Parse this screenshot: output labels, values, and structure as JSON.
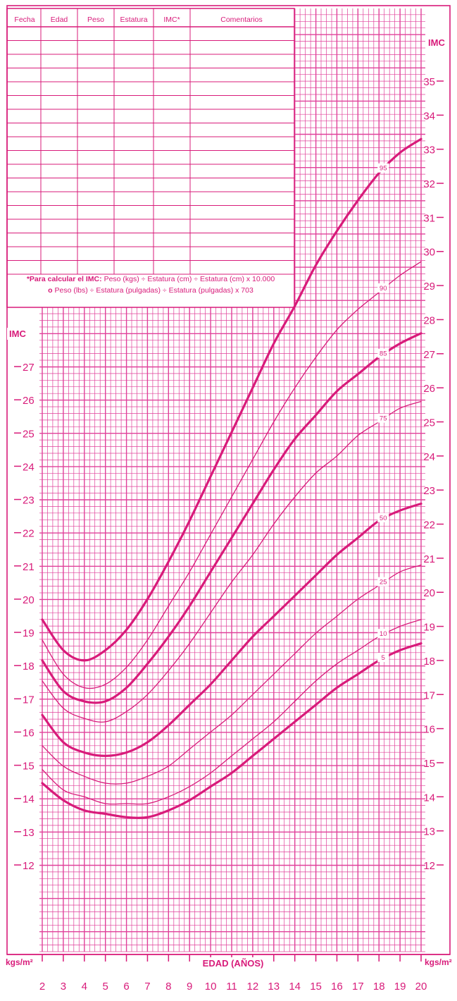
{
  "table": {
    "headers": [
      "Fecha",
      "Edad",
      "Peso",
      "Estatura",
      "IMC*",
      "Comentarios"
    ]
  },
  "note": {
    "line1_bold": "*Para calcular el IMC:",
    "line1_rest": "Peso (kgs) ÷ Estatura (cm) ÷ Estatura (cm) x 10.000",
    "line2_bold": "o",
    "line2_rest": "Peso (lbs) ÷ Estatura (pulgadas) ÷ Estatura (pulgadas) x 703"
  },
  "labels": {
    "imc_left": "IMC",
    "imc_right": "IMC",
    "unit_left": "kgs/m²",
    "unit_right": "kgs/m²"
  },
  "colors": {
    "ink": "#d81b7a",
    "grid": "#e0409a",
    "background": "#ffffff"
  },
  "chart_data": {
    "type": "line",
    "xlabel": "EDAD (AÑOS)",
    "ylabel": "IMC",
    "xlim": [
      2,
      20
    ],
    "ylim_left": [
      12,
      27
    ],
    "ylim_right": [
      12,
      35
    ],
    "xticks": [
      2,
      3,
      4,
      5,
      6,
      7,
      8,
      9,
      10,
      11,
      12,
      13,
      14,
      15,
      16,
      17,
      18,
      19,
      20
    ],
    "yticks_left": [
      12,
      13,
      14,
      15,
      16,
      17,
      18,
      19,
      20,
      21,
      22,
      23,
      24,
      25,
      26,
      27
    ],
    "yticks_right": [
      12,
      13,
      14,
      15,
      16,
      17,
      18,
      19,
      20,
      21,
      22,
      23,
      24,
      25,
      26,
      27,
      28,
      29,
      30,
      31,
      32,
      33,
      34,
      35
    ],
    "grid": true,
    "series": [
      {
        "name": "95",
        "bold": true,
        "label_x": 18.2,
        "x": [
          2,
          3,
          4,
          5,
          6,
          7,
          8,
          9,
          10,
          11,
          12,
          13,
          14,
          15,
          16,
          17,
          18,
          19,
          20
        ],
        "values": [
          19.2,
          18.3,
          18.0,
          18.3,
          18.9,
          19.8,
          20.9,
          22.1,
          23.4,
          24.7,
          26.0,
          27.3,
          28.4,
          29.6,
          30.6,
          31.5,
          32.3,
          32.9,
          33.3
        ]
      },
      {
        "name": "90",
        "bold": false,
        "label_x": 18.2,
        "x": [
          2,
          3,
          4,
          5,
          6,
          7,
          8,
          9,
          10,
          11,
          12,
          13,
          14,
          15,
          16,
          17,
          18,
          19,
          20
        ],
        "values": [
          18.6,
          17.6,
          17.2,
          17.3,
          17.8,
          18.6,
          19.6,
          20.6,
          21.7,
          22.8,
          23.9,
          25.0,
          26.0,
          26.9,
          27.7,
          28.3,
          28.8,
          29.3,
          29.7
        ]
      },
      {
        "name": "85",
        "bold": true,
        "label_x": 18.2,
        "x": [
          2,
          3,
          4,
          5,
          6,
          7,
          8,
          9,
          10,
          11,
          12,
          13,
          14,
          15,
          16,
          17,
          18,
          19,
          20
        ],
        "values": [
          18.0,
          17.1,
          16.8,
          16.8,
          17.2,
          17.9,
          18.7,
          19.6,
          20.6,
          21.6,
          22.6,
          23.6,
          24.5,
          25.2,
          25.9,
          26.4,
          26.9,
          27.3,
          27.6
        ]
      },
      {
        "name": "75",
        "bold": false,
        "label_x": 18.2,
        "x": [
          2,
          3,
          4,
          5,
          6,
          7,
          8,
          9,
          10,
          11,
          12,
          13,
          14,
          15,
          16,
          17,
          18,
          19,
          20
        ],
        "values": [
          17.4,
          16.6,
          16.3,
          16.2,
          16.5,
          17.0,
          17.7,
          18.5,
          19.4,
          20.3,
          21.1,
          22.0,
          22.8,
          23.5,
          24.0,
          24.6,
          25.0,
          25.4,
          25.6
        ]
      },
      {
        "name": "50",
        "bold": true,
        "label_x": 18.2,
        "x": [
          2,
          3,
          4,
          5,
          6,
          7,
          8,
          9,
          10,
          11,
          12,
          13,
          14,
          15,
          16,
          17,
          18,
          19,
          20
        ],
        "values": [
          16.4,
          15.6,
          15.3,
          15.2,
          15.3,
          15.6,
          16.1,
          16.7,
          17.3,
          18.0,
          18.7,
          19.3,
          19.9,
          20.5,
          21.1,
          21.6,
          22.1,
          22.4,
          22.6
        ]
      },
      {
        "name": "25",
        "bold": false,
        "label_x": 18.2,
        "x": [
          2,
          3,
          4,
          5,
          6,
          7,
          8,
          9,
          10,
          11,
          12,
          13,
          14,
          15,
          16,
          17,
          18,
          19,
          20
        ],
        "values": [
          15.5,
          14.9,
          14.6,
          14.4,
          14.4,
          14.6,
          14.9,
          15.4,
          15.9,
          16.4,
          17.0,
          17.6,
          18.2,
          18.8,
          19.3,
          19.8,
          20.2,
          20.6,
          20.8
        ]
      },
      {
        "name": "10",
        "bold": false,
        "label_x": 18.2,
        "x": [
          2,
          3,
          4,
          5,
          6,
          7,
          8,
          9,
          10,
          11,
          12,
          13,
          14,
          15,
          16,
          17,
          18,
          19,
          20
        ],
        "values": [
          14.8,
          14.2,
          14.0,
          13.8,
          13.8,
          13.8,
          14.0,
          14.3,
          14.7,
          15.2,
          15.7,
          16.2,
          16.8,
          17.4,
          17.9,
          18.3,
          18.7,
          19.0,
          19.2
        ]
      },
      {
        "name": "5",
        "bold": true,
        "label_x": 18.2,
        "x": [
          2,
          3,
          4,
          5,
          6,
          7,
          8,
          9,
          10,
          11,
          12,
          13,
          14,
          15,
          16,
          17,
          18,
          19,
          20
        ],
        "values": [
          14.4,
          13.9,
          13.6,
          13.5,
          13.4,
          13.4,
          13.6,
          13.9,
          14.3,
          14.7,
          15.2,
          15.7,
          16.2,
          16.7,
          17.2,
          17.6,
          18.0,
          18.3,
          18.5
        ]
      }
    ]
  }
}
